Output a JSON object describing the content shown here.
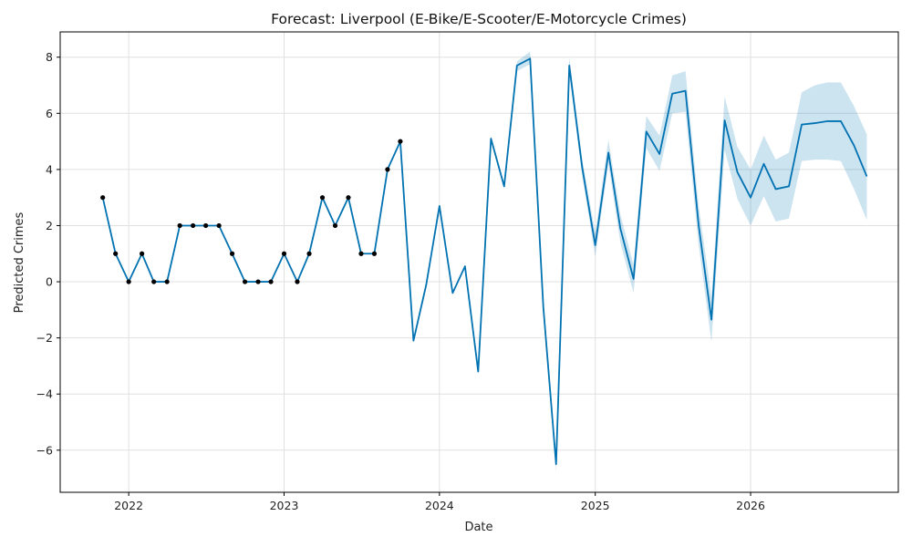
{
  "chart_data": {
    "type": "line",
    "title": "Forecast: Liverpool (E-Bike/E-Scooter/E-Motorcycle Crimes)",
    "xlabel": "Date",
    "ylabel": "Predicted Crimes",
    "xlim": [
      "2021-07-24",
      "2026-12-14"
    ],
    "ylim": [
      -7.5,
      8.9
    ],
    "x_ticks": [
      "2022-01-01",
      "2023-01-01",
      "2024-01-01",
      "2025-01-01",
      "2026-01-01"
    ],
    "x_tick_labels": [
      "2022",
      "2023",
      "2024",
      "2025",
      "2026"
    ],
    "y_ticks": [
      -6,
      -4,
      -2,
      0,
      2,
      4,
      6,
      8
    ],
    "y_tick_labels": [
      "−6",
      "−4",
      "−2",
      "0",
      "2",
      "4",
      "6",
      "8"
    ],
    "grid": true,
    "colors": {
      "line": "#0072b2",
      "band": "#0072b2",
      "observed": "#000000",
      "grid": "#e0e0e0"
    },
    "series": [
      {
        "role": "forecast",
        "x": [
          "2021-11-01",
          "2021-12-01",
          "2022-01-01",
          "2022-02-01",
          "2022-03-01",
          "2022-04-01",
          "2022-05-01",
          "2022-06-01",
          "2022-07-01",
          "2022-08-01",
          "2022-09-01",
          "2022-10-01",
          "2022-11-01",
          "2022-12-01",
          "2023-01-01",
          "2023-02-01",
          "2023-03-01",
          "2023-04-01",
          "2023-05-01",
          "2023-06-01",
          "2023-07-01",
          "2023-08-01",
          "2023-09-01",
          "2023-10-01",
          "2023-11-01",
          "2023-12-01",
          "2024-01-01",
          "2024-02-01",
          "2024-03-01",
          "2024-04-01",
          "2024-05-01",
          "2024-06-01",
          "2024-07-01",
          "2024-08-01",
          "2024-09-01",
          "2024-10-01",
          "2024-11-01",
          "2024-12-01",
          "2025-01-01",
          "2025-02-01",
          "2025-03-01",
          "2025-04-01",
          "2025-05-01",
          "2025-06-01",
          "2025-07-01",
          "2025-08-01",
          "2025-09-01",
          "2025-10-01",
          "2025-11-01",
          "2025-12-01",
          "2026-01-01",
          "2026-02-01",
          "2026-03-01",
          "2026-04-01",
          "2026-05-01",
          "2026-06-01",
          "2026-07-01",
          "2026-08-01",
          "2026-09-01",
          "2026-10-01"
        ],
        "y": [
          3,
          1,
          0,
          1,
          0,
          0,
          2,
          2,
          2,
          2,
          1,
          0,
          0,
          0,
          1,
          0,
          1,
          3,
          2,
          3,
          1,
          1,
          4,
          5,
          -2.1,
          -0.1,
          2.7,
          -0.4,
          0.55,
          -3.2,
          5.1,
          3.4,
          7.7,
          7.95,
          -0.9,
          -6.5,
          7.7,
          4.1,
          1.3,
          4.6,
          1.9,
          0.1,
          5.35,
          4.55,
          6.7,
          6.8,
          2.0,
          -1.35,
          5.75,
          3.9,
          3.0,
          4.2,
          3.3,
          3.4,
          5.6,
          5.65,
          5.72,
          5.72,
          4.85,
          3.75
        ],
        "lower": [
          3,
          1,
          0,
          1,
          0,
          0,
          2,
          2,
          2,
          2,
          1,
          0,
          0,
          0,
          1,
          0,
          1,
          3,
          2,
          3,
          1,
          1,
          4,
          5,
          -2.1,
          -0.1,
          2.7,
          -0.4,
          0.55,
          -3.2,
          5.0,
          3.3,
          7.5,
          7.75,
          -1.1,
          -6.75,
          7.4,
          3.8,
          0.9,
          4.2,
          1.4,
          -0.4,
          4.75,
          3.95,
          6.0,
          6.05,
          1.3,
          -2.15,
          4.7,
          2.95,
          2.0,
          3.05,
          2.15,
          2.25,
          4.3,
          4.35,
          4.35,
          4.3,
          3.3,
          2.2
        ],
        "upper": [
          3,
          1,
          0,
          1,
          0,
          0,
          2,
          2,
          2,
          2,
          1,
          0,
          0,
          0,
          1,
          0,
          1,
          3,
          2,
          3,
          1,
          1,
          4,
          5,
          -2.1,
          -0.1,
          2.7,
          -0.4,
          0.55,
          -3.2,
          5.2,
          3.5,
          7.85,
          8.2,
          -0.6,
          -6.25,
          8.0,
          4.4,
          1.75,
          5.05,
          2.4,
          0.6,
          5.9,
          5.2,
          7.35,
          7.5,
          2.7,
          -0.55,
          6.6,
          4.8,
          4.0,
          5.2,
          4.35,
          4.6,
          6.75,
          7.0,
          7.1,
          7.1,
          6.25,
          5.25
        ]
      },
      {
        "role": "observed",
        "x": [
          "2021-11-01",
          "2021-12-01",
          "2022-01-01",
          "2022-02-01",
          "2022-03-01",
          "2022-04-01",
          "2022-05-01",
          "2022-06-01",
          "2022-07-01",
          "2022-08-01",
          "2022-09-01",
          "2022-10-01",
          "2022-11-01",
          "2022-12-01",
          "2023-01-01",
          "2023-02-01",
          "2023-03-01",
          "2023-04-01",
          "2023-05-01",
          "2023-06-01",
          "2023-07-01",
          "2023-08-01",
          "2023-09-01",
          "2023-10-01"
        ],
        "y": [
          3,
          1,
          0,
          1,
          0,
          0,
          2,
          2,
          2,
          2,
          1,
          0,
          0,
          0,
          1,
          0,
          1,
          3,
          2,
          3,
          1,
          1,
          4,
          5
        ]
      }
    ]
  }
}
